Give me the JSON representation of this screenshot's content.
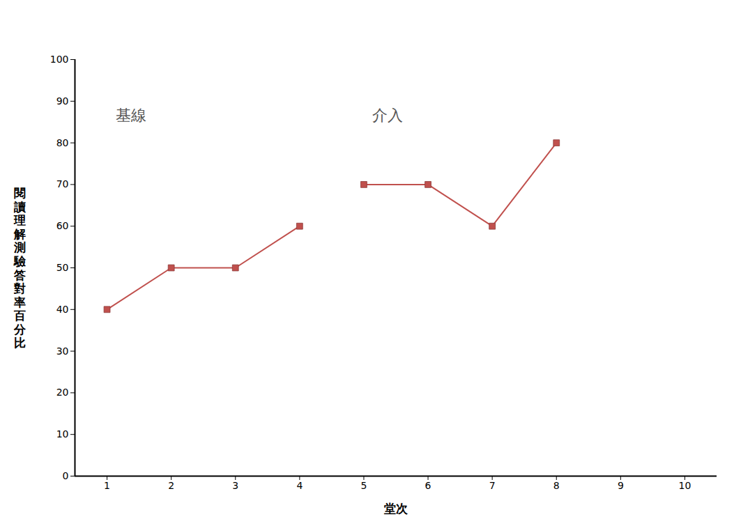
{
  "chart_data": {
    "type": "line",
    "x_label": "堂次",
    "y_label": "閱讀理解測驗答對率百分比",
    "x": [
      1,
      2,
      3,
      4,
      5,
      6,
      7,
      8
    ],
    "series": [
      {
        "name": "基線",
        "color": "#c0504d",
        "marker": "square",
        "values": [
          40,
          50,
          50,
          60,
          null,
          null,
          null,
          null
        ]
      },
      {
        "name": "介入",
        "color": "#c0504d",
        "marker": "square",
        "values": [
          null,
          null,
          null,
          null,
          70,
          70,
          60,
          80
        ]
      }
    ],
    "xlim": [
      0.5,
      10.5
    ],
    "xticks": [
      1,
      2,
      3,
      4,
      5,
      6,
      7,
      8,
      9,
      10
    ],
    "ylim": [
      0,
      100
    ],
    "yticks": [
      0,
      10,
      20,
      30,
      40,
      50,
      60,
      70,
      80,
      90,
      100
    ],
    "grid": false
  }
}
